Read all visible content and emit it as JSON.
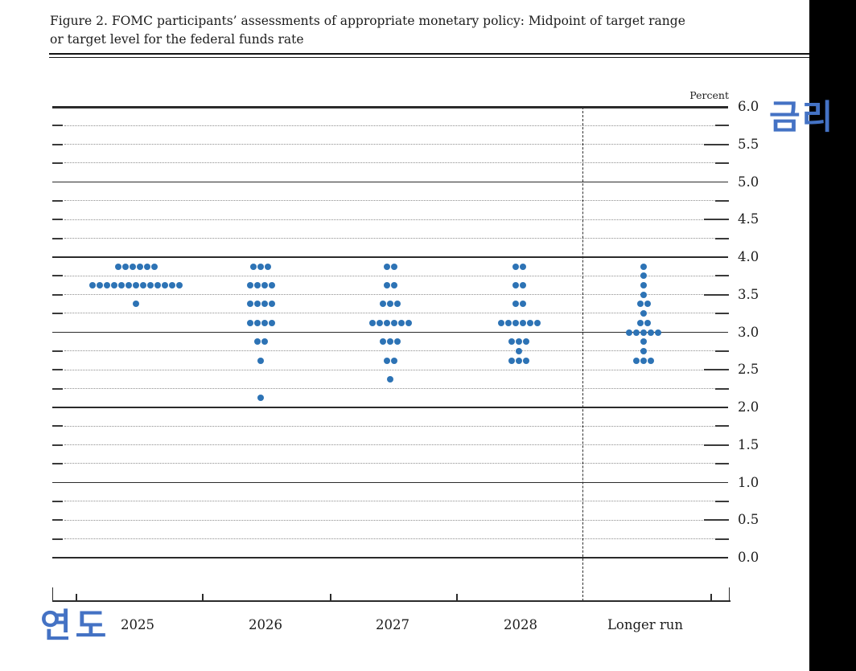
{
  "figure": {
    "title_line1": "Figure 2. FOMC participants’ assessments of appropriate monetary policy: Midpoint of target range",
    "title_line2": "or target level for the federal funds rate"
  },
  "annotations": {
    "rate_label": "금리",
    "year_label": "연도"
  },
  "colors": {
    "dot_blue": "#2d73b5",
    "annotation_blue": "#4472c4",
    "band_black": "#000000"
  },
  "chart_data": {
    "type": "scatter",
    "variant": "fomc-dot-plot",
    "title": "FOMC participants’ assessments of appropriate monetary policy: Midpoint of target range or target level for the federal funds rate",
    "ylabel": "Percent",
    "xlabel": "",
    "ylim": [
      0.0,
      6.0
    ],
    "gridline_step": 0.25,
    "labeled_tick_step": 0.5,
    "grid": "dotted-quarters-solid-integers",
    "legend_position": "none",
    "ytick_labels": [
      "6.0",
      "5.5",
      "5.0",
      "4.5",
      "4.0",
      "3.5",
      "3.0",
      "2.5",
      "2.0",
      "1.5",
      "1.0",
      "0.5",
      "0.0"
    ],
    "categories": [
      "2025",
      "2026",
      "2027",
      "2028",
      "Longer run"
    ],
    "separator_before_category": "Longer run",
    "dots": {
      "2025": [
        {
          "rate": 3.875,
          "count": 6
        },
        {
          "rate": 3.625,
          "count": 13
        },
        {
          "rate": 3.375,
          "count": 1
        }
      ],
      "2026": [
        {
          "rate": 3.875,
          "count": 3
        },
        {
          "rate": 3.625,
          "count": 4
        },
        {
          "rate": 3.375,
          "count": 4
        },
        {
          "rate": 3.125,
          "count": 4
        },
        {
          "rate": 2.875,
          "count": 2
        },
        {
          "rate": 2.625,
          "count": 1
        },
        {
          "rate": 2.125,
          "count": 1
        }
      ],
      "2027": [
        {
          "rate": 3.875,
          "count": 2
        },
        {
          "rate": 3.625,
          "count": 2
        },
        {
          "rate": 3.375,
          "count": 3
        },
        {
          "rate": 3.125,
          "count": 6
        },
        {
          "rate": 2.875,
          "count": 3
        },
        {
          "rate": 2.625,
          "count": 2
        },
        {
          "rate": 2.375,
          "count": 1
        }
      ],
      "2028": [
        {
          "rate": 3.875,
          "count": 2
        },
        {
          "rate": 3.625,
          "count": 2
        },
        {
          "rate": 3.375,
          "count": 2
        },
        {
          "rate": 3.125,
          "count": 6
        },
        {
          "rate": 2.875,
          "count": 3
        },
        {
          "rate": 2.75,
          "count": 1
        },
        {
          "rate": 2.625,
          "count": 3
        }
      ],
      "Longer run": [
        {
          "rate": 3.875,
          "count": 1
        },
        {
          "rate": 3.75,
          "count": 1
        },
        {
          "rate": 3.625,
          "count": 1
        },
        {
          "rate": 3.5,
          "count": 1
        },
        {
          "rate": 3.375,
          "count": 2
        },
        {
          "rate": 3.25,
          "count": 1
        },
        {
          "rate": 3.125,
          "count": 2
        },
        {
          "rate": 3.0,
          "count": 5
        },
        {
          "rate": 2.875,
          "count": 1
        },
        {
          "rate": 2.75,
          "count": 1
        },
        {
          "rate": 2.625,
          "count": 3
        }
      ]
    }
  }
}
